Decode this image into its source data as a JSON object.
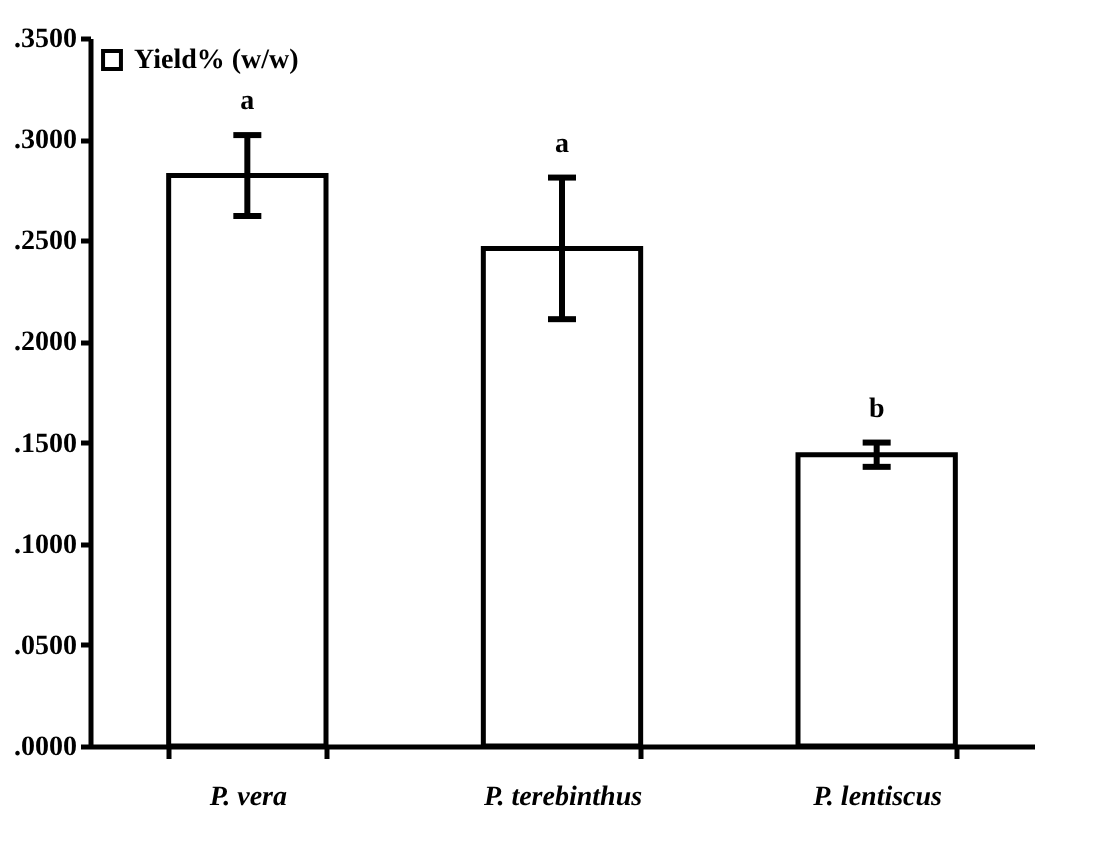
{
  "chart_data": {
    "type": "bar",
    "categories": [
      "P. vera",
      "P. terebinthus",
      "P. lentiscus"
    ],
    "series": [
      {
        "name": "Yield% (w/w)",
        "color": "#ffffff",
        "values": [
          0.282,
          0.246,
          0.144
        ],
        "errors": [
          0.02,
          0.035,
          0.006
        ]
      }
    ],
    "ylim": [
      0,
      0.35
    ],
    "yticks": [
      {
        "value": 0,
        "label": ".0000"
      },
      {
        "value": 0.05,
        "label": ".0500"
      },
      {
        "value": 0.1,
        "label": ".1000"
      },
      {
        "value": 0.15,
        "label": ".1500"
      },
      {
        "value": 0.2,
        "label": ".2000"
      },
      {
        "value": 0.25,
        "label": ".2500"
      },
      {
        "value": 0.3,
        "label": ".3000"
      },
      {
        "value": 0.35,
        "label": ".3500"
      }
    ],
    "annotations": [
      {
        "text": "a",
        "x": "P. vera",
        "y": 0.302
      },
      {
        "text": "a",
        "x": "P. terebinthus",
        "y": 0.281
      },
      {
        "text": "b",
        "x": "P. lentiscus",
        "y": 0.15
      }
    ],
    "legend": "top left",
    "grid": false
  }
}
